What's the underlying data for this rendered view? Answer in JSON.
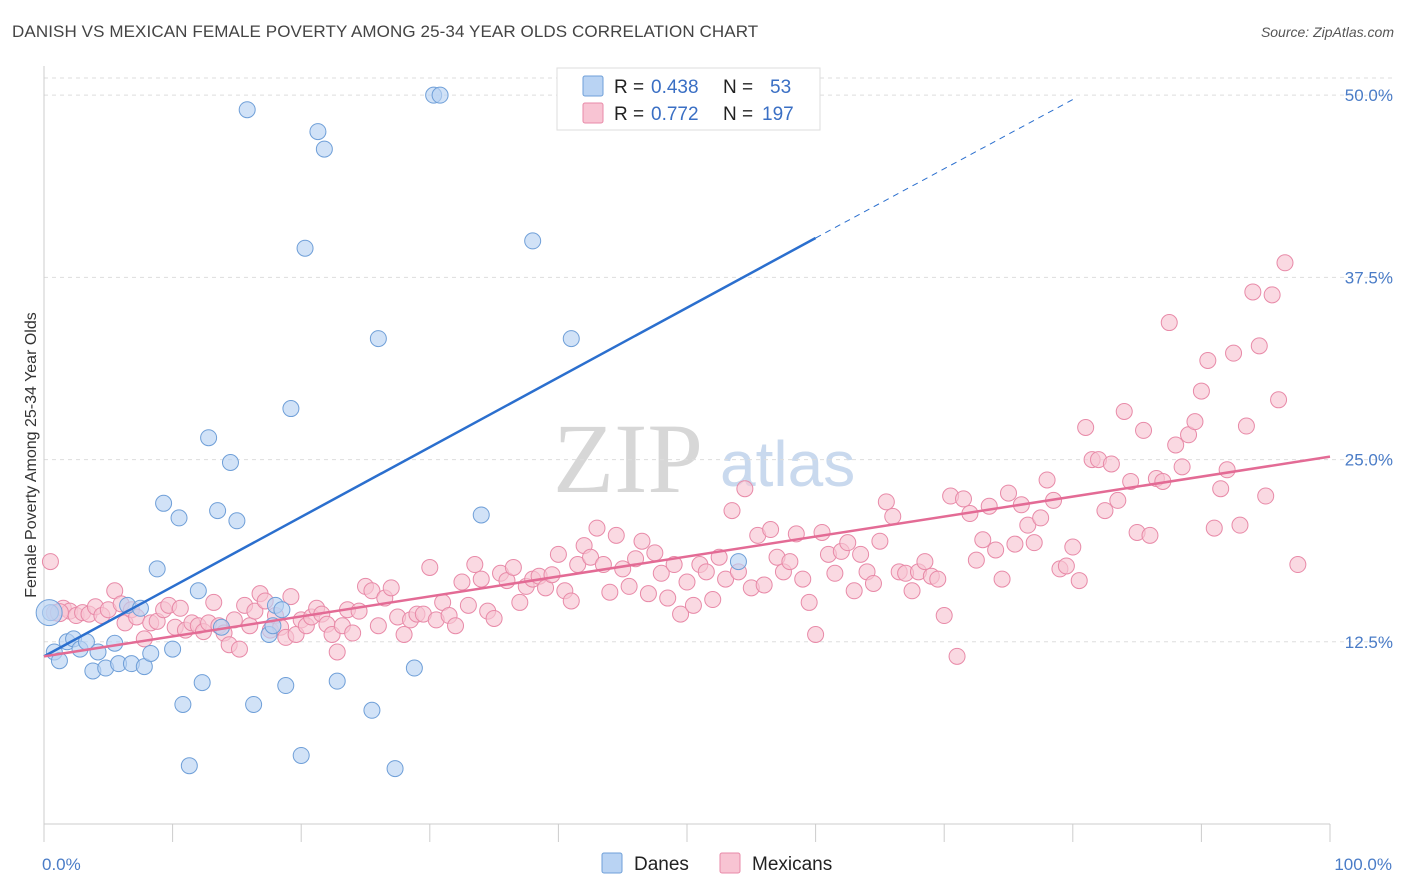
{
  "title": "DANISH VS MEXICAN FEMALE POVERTY AMONG 25-34 YEAR OLDS CORRELATION CHART",
  "source": "Source: ZipAtlas.com",
  "watermark": {
    "zip": "ZIP",
    "atlas": "atlas"
  },
  "colors": {
    "danes_fill": "#b9d3f3",
    "danes_stroke": "#6f9fd8",
    "danes_line": "#2b6fce",
    "mexicans_fill": "#f8c4d3",
    "mexicans_stroke": "#e88aa8",
    "mexicans_line": "#e36b95",
    "grid": "#dddddd",
    "tick_label": "#4a7cc7"
  },
  "legend_top": {
    "r_label": "R =",
    "n_label": "N =",
    "rows": [
      {
        "series": "Danes",
        "r": "0.438",
        "n": "53"
      },
      {
        "series": "Mexicans",
        "r": "0.772",
        "n": "197"
      }
    ]
  },
  "chart_data": {
    "type": "scatter",
    "ylabel": "Female Poverty Among 25-34 Year Olds",
    "xlim": [
      0,
      100
    ],
    "ylim": [
      0,
      52
    ],
    "x_tick_labels": [
      "0.0%",
      "100.0%"
    ],
    "y_ticks": [
      12.5,
      25.0,
      37.5,
      50.0
    ],
    "y_tick_labels": [
      "12.5%",
      "25.0%",
      "37.5%",
      "50.0%"
    ],
    "grid": "horizontal dashed",
    "legend_bottom": [
      "Danes",
      "Mexicans"
    ],
    "series": [
      {
        "name": "Danes",
        "trend": {
          "x0": 0,
          "y0": 11.5,
          "x1": 60,
          "y1": 40.2,
          "dashed_to_x": 80,
          "dashed_to_y": 49.7
        },
        "points": [
          [
            0.5,
            14.5
          ],
          [
            0.8,
            11.8
          ],
          [
            1.2,
            11.2
          ],
          [
            1.8,
            12.5
          ],
          [
            2.3,
            12.7
          ],
          [
            2.8,
            12.0
          ],
          [
            3.3,
            12.5
          ],
          [
            3.8,
            10.5
          ],
          [
            4.2,
            11.8
          ],
          [
            4.8,
            10.7
          ],
          [
            5.5,
            12.4
          ],
          [
            5.8,
            11.0
          ],
          [
            6.5,
            15.0
          ],
          [
            6.8,
            11.0
          ],
          [
            7.5,
            14.8
          ],
          [
            7.8,
            10.8
          ],
          [
            8.3,
            11.7
          ],
          [
            8.8,
            17.5
          ],
          [
            9.3,
            22.0
          ],
          [
            10.0,
            12.0
          ],
          [
            10.5,
            21.0
          ],
          [
            10.8,
            8.2
          ],
          [
            11.3,
            4.0
          ],
          [
            12.0,
            16.0
          ],
          [
            12.3,
            9.7
          ],
          [
            12.8,
            26.5
          ],
          [
            13.5,
            21.5
          ],
          [
            13.8,
            13.5
          ],
          [
            14.5,
            24.8
          ],
          [
            15.0,
            20.8
          ],
          [
            15.8,
            49.0
          ],
          [
            16.3,
            8.2
          ],
          [
            17.5,
            13.0
          ],
          [
            17.8,
            13.6
          ],
          [
            18.0,
            15.0
          ],
          [
            18.5,
            14.7
          ],
          [
            18.8,
            9.5
          ],
          [
            19.2,
            28.5
          ],
          [
            20.0,
            4.7
          ],
          [
            20.3,
            39.5
          ],
          [
            21.3,
            47.5
          ],
          [
            21.8,
            46.3
          ],
          [
            22.8,
            9.8
          ],
          [
            25.5,
            7.8
          ],
          [
            26.0,
            33.3
          ],
          [
            27.3,
            3.8
          ],
          [
            28.8,
            10.7
          ],
          [
            30.3,
            50.0
          ],
          [
            30.8,
            50.0
          ],
          [
            34.0,
            21.2
          ],
          [
            38.0,
            40.0
          ],
          [
            41.0,
            33.3
          ],
          [
            54.0,
            18.0
          ]
        ]
      },
      {
        "name": "Mexicans",
        "trend": {
          "x0": 0,
          "y0": 11.5,
          "x1": 100,
          "y1": 25.2
        },
        "points": [
          [
            0.5,
            18.0
          ],
          [
            0.8,
            14.5
          ],
          [
            1.5,
            14.8
          ],
          [
            2.0,
            14.6
          ],
          [
            2.5,
            14.3
          ],
          [
            3.0,
            14.5
          ],
          [
            3.5,
            14.4
          ],
          [
            4.0,
            14.9
          ],
          [
            4.5,
            14.3
          ],
          [
            5.0,
            14.7
          ],
          [
            5.5,
            16.0
          ],
          [
            6.0,
            15.1
          ],
          [
            6.3,
            13.8
          ],
          [
            6.8,
            14.7
          ],
          [
            7.2,
            14.2
          ],
          [
            7.8,
            12.7
          ],
          [
            8.3,
            13.8
          ],
          [
            8.8,
            13.9
          ],
          [
            9.3,
            14.7
          ],
          [
            9.7,
            15.0
          ],
          [
            10.2,
            13.5
          ],
          [
            10.6,
            14.8
          ],
          [
            11.0,
            13.3
          ],
          [
            11.5,
            13.8
          ],
          [
            12.0,
            13.6
          ],
          [
            12.4,
            13.2
          ],
          [
            12.8,
            13.8
          ],
          [
            13.2,
            15.2
          ],
          [
            13.6,
            13.6
          ],
          [
            14.0,
            13.1
          ],
          [
            14.4,
            12.3
          ],
          [
            14.8,
            14.0
          ],
          [
            15.2,
            12.0
          ],
          [
            15.6,
            15.0
          ],
          [
            16.0,
            13.6
          ],
          [
            16.4,
            14.6
          ],
          [
            16.8,
            15.8
          ],
          [
            17.2,
            15.3
          ],
          [
            17.6,
            13.3
          ],
          [
            18.0,
            14.3
          ],
          [
            18.4,
            13.5
          ],
          [
            18.8,
            12.8
          ],
          [
            19.2,
            15.6
          ],
          [
            19.6,
            13.0
          ],
          [
            20.0,
            14.0
          ],
          [
            20.4,
            13.6
          ],
          [
            20.8,
            14.2
          ],
          [
            21.2,
            14.8
          ],
          [
            21.6,
            14.4
          ],
          [
            22.0,
            13.7
          ],
          [
            22.4,
            13.0
          ],
          [
            22.8,
            11.8
          ],
          [
            23.2,
            13.6
          ],
          [
            23.6,
            14.7
          ],
          [
            24.0,
            13.1
          ],
          [
            24.5,
            14.6
          ],
          [
            25.0,
            16.3
          ],
          [
            25.5,
            16.0
          ],
          [
            26.0,
            13.6
          ],
          [
            26.5,
            15.5
          ],
          [
            27.0,
            16.2
          ],
          [
            27.5,
            14.2
          ],
          [
            28.0,
            13.0
          ],
          [
            28.5,
            14.0
          ],
          [
            29.0,
            14.4
          ],
          [
            29.5,
            14.4
          ],
          [
            30.0,
            17.6
          ],
          [
            30.5,
            14.0
          ],
          [
            31.0,
            15.2
          ],
          [
            31.5,
            14.3
          ],
          [
            32.0,
            13.6
          ],
          [
            32.5,
            16.6
          ],
          [
            33.0,
            15.0
          ],
          [
            33.5,
            17.8
          ],
          [
            34.0,
            16.8
          ],
          [
            34.5,
            14.6
          ],
          [
            35.0,
            14.1
          ],
          [
            35.5,
            17.2
          ],
          [
            36.0,
            16.7
          ],
          [
            36.5,
            17.6
          ],
          [
            37.0,
            15.2
          ],
          [
            37.5,
            16.3
          ],
          [
            38.0,
            16.8
          ],
          [
            38.5,
            17.0
          ],
          [
            39.0,
            16.2
          ],
          [
            39.5,
            17.1
          ],
          [
            40.0,
            18.5
          ],
          [
            40.5,
            16.0
          ],
          [
            41.0,
            15.3
          ],
          [
            41.5,
            17.8
          ],
          [
            42.0,
            19.1
          ],
          [
            42.5,
            18.3
          ],
          [
            43.0,
            20.3
          ],
          [
            43.5,
            17.8
          ],
          [
            44.0,
            15.9
          ],
          [
            44.5,
            19.8
          ],
          [
            45.0,
            17.5
          ],
          [
            45.5,
            16.3
          ],
          [
            46.0,
            18.2
          ],
          [
            46.5,
            19.4
          ],
          [
            47.0,
            15.8
          ],
          [
            47.5,
            18.6
          ],
          [
            48.0,
            17.2
          ],
          [
            48.5,
            15.5
          ],
          [
            49.0,
            17.8
          ],
          [
            49.5,
            14.4
          ],
          [
            50.0,
            16.6
          ],
          [
            50.5,
            15.0
          ],
          [
            51.0,
            17.8
          ],
          [
            51.5,
            17.3
          ],
          [
            52.0,
            15.4
          ],
          [
            52.5,
            18.3
          ],
          [
            53.0,
            16.8
          ],
          [
            53.5,
            21.5
          ],
          [
            54.0,
            17.3
          ],
          [
            54.5,
            23.0
          ],
          [
            55.0,
            16.2
          ],
          [
            55.5,
            19.8
          ],
          [
            56.0,
            16.4
          ],
          [
            56.5,
            20.2
          ],
          [
            57.0,
            18.3
          ],
          [
            57.5,
            17.3
          ],
          [
            58.0,
            18.0
          ],
          [
            58.5,
            19.9
          ],
          [
            59.0,
            16.8
          ],
          [
            59.5,
            15.2
          ],
          [
            60.0,
            13.0
          ],
          [
            60.5,
            20.0
          ],
          [
            61.0,
            18.5
          ],
          [
            61.5,
            17.2
          ],
          [
            62.0,
            18.7
          ],
          [
            62.5,
            19.3
          ],
          [
            63.0,
            16.0
          ],
          [
            63.5,
            18.5
          ],
          [
            64.0,
            17.3
          ],
          [
            64.5,
            16.5
          ],
          [
            65.0,
            19.4
          ],
          [
            65.5,
            22.1
          ],
          [
            66.0,
            21.1
          ],
          [
            66.5,
            17.3
          ],
          [
            67.0,
            17.2
          ],
          [
            67.5,
            16.0
          ],
          [
            68.0,
            17.3
          ],
          [
            68.5,
            18.0
          ],
          [
            69.0,
            17.0
          ],
          [
            69.5,
            16.8
          ],
          [
            70.0,
            14.3
          ],
          [
            70.5,
            22.5
          ],
          [
            71.0,
            11.5
          ],
          [
            71.5,
            22.3
          ],
          [
            72.0,
            21.3
          ],
          [
            72.5,
            18.1
          ],
          [
            73.0,
            19.5
          ],
          [
            73.5,
            21.8
          ],
          [
            74.0,
            18.8
          ],
          [
            74.5,
            16.8
          ],
          [
            75.0,
            22.7
          ],
          [
            75.5,
            19.2
          ],
          [
            76.0,
            21.9
          ],
          [
            76.5,
            20.5
          ],
          [
            77.0,
            19.3
          ],
          [
            77.5,
            21.0
          ],
          [
            78.0,
            23.6
          ],
          [
            78.5,
            22.2
          ],
          [
            79.0,
            17.5
          ],
          [
            79.5,
            17.7
          ],
          [
            80.0,
            19.0
          ],
          [
            80.5,
            16.7
          ],
          [
            81.0,
            27.2
          ],
          [
            81.5,
            25.0
          ],
          [
            82.0,
            25.0
          ],
          [
            82.5,
            21.5
          ],
          [
            83.0,
            24.7
          ],
          [
            83.5,
            22.2
          ],
          [
            84.0,
            28.3
          ],
          [
            84.5,
            23.5
          ],
          [
            85.0,
            20.0
          ],
          [
            85.5,
            27.0
          ],
          [
            86.0,
            19.8
          ],
          [
            86.5,
            23.7
          ],
          [
            87.0,
            23.5
          ],
          [
            87.5,
            34.4
          ],
          [
            88.0,
            26.0
          ],
          [
            88.5,
            24.5
          ],
          [
            89.0,
            26.7
          ],
          [
            89.5,
            27.6
          ],
          [
            90.0,
            29.7
          ],
          [
            90.5,
            31.8
          ],
          [
            91.0,
            20.3
          ],
          [
            91.5,
            23.0
          ],
          [
            92.0,
            24.3
          ],
          [
            92.5,
            32.3
          ],
          [
            93.0,
            20.5
          ],
          [
            93.5,
            27.3
          ],
          [
            94.0,
            36.5
          ],
          [
            94.5,
            32.8
          ],
          [
            95.0,
            22.5
          ],
          [
            95.5,
            36.3
          ],
          [
            96.0,
            29.1
          ],
          [
            96.5,
            38.5
          ],
          [
            97.5,
            17.8
          ]
        ]
      }
    ]
  }
}
